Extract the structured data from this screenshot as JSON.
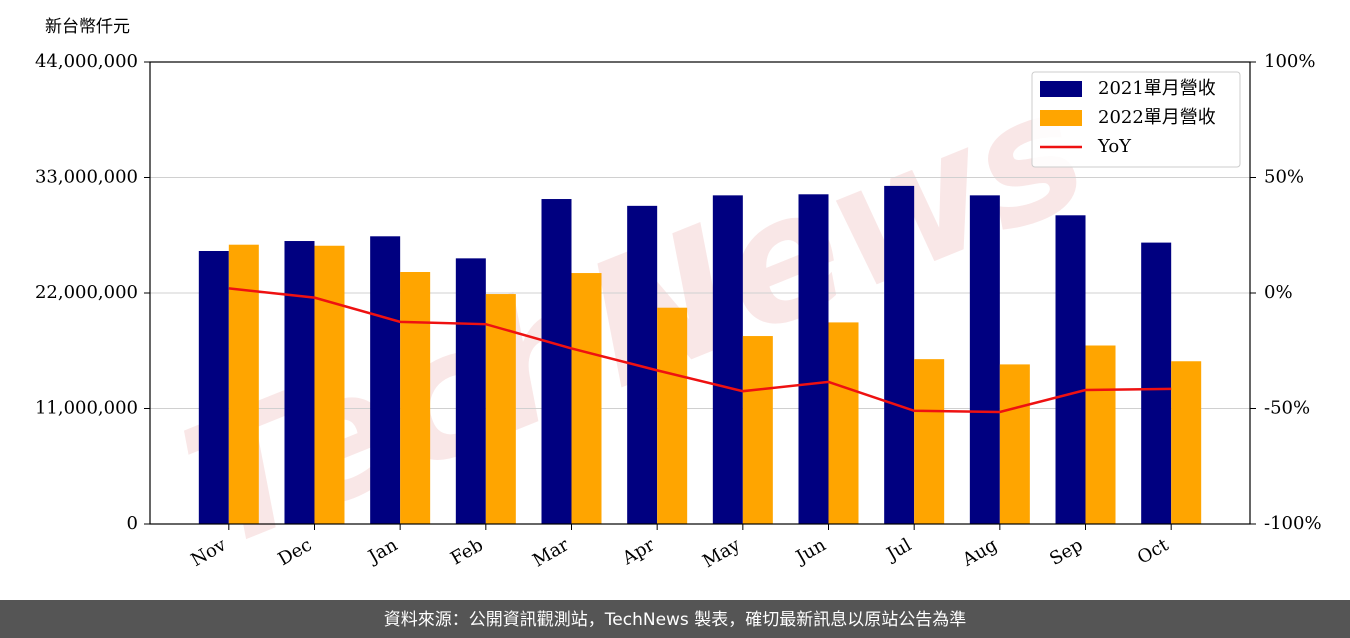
{
  "chart_data": {
    "type": "bar",
    "y_label": "新台幣仟元",
    "watermark": "TechNews",
    "footer": "資料來源：公開資訊觀測站，TechNews 製表，確切最新訊息以原站公告為準",
    "categories": [
      "Nov",
      "Dec",
      "Jan",
      "Feb",
      "Mar",
      "Apr",
      "May",
      "Jun",
      "Jul",
      "Aug",
      "Sep",
      "Oct"
    ],
    "series": [
      {
        "name": "2021單月營收",
        "color": "#000080",
        "values": [
          26000000,
          26950000,
          27400000,
          25300000,
          30950000,
          30300000,
          31300000,
          31400000,
          32200000,
          31300000,
          29400000,
          26800000
        ]
      },
      {
        "name": "2022單月營收",
        "color": "#ffa500",
        "values": [
          26600000,
          26500000,
          24000000,
          21900000,
          23900000,
          20600000,
          17900000,
          19200000,
          15700000,
          15200000,
          17000000,
          15500000
        ]
      },
      {
        "name": "YoY",
        "color": "#ee1111",
        "type": "line",
        "axis": "y2",
        "values": [
          2,
          -2,
          -12.5,
          -13.5,
          -24,
          -33.5,
          -42.5,
          -38.5,
          -51,
          -51.5,
          -42,
          -41.5
        ]
      }
    ],
    "ylim": [
      0,
      44000000
    ],
    "yticks": [
      0,
      {
        "value": 11000000,
        "label": "11,000,000"
      },
      {
        "value": 22000000,
        "label": "22,000,000"
      },
      {
        "value": 33000000,
        "label": "33,000,000"
      },
      {
        "value": 44000000,
        "label": "44,000,000"
      }
    ],
    "y2lim": [
      -100,
      100
    ],
    "y2ticks": [
      {
        "value": -100,
        "label": "-100%"
      },
      {
        "value": -50,
        "label": "-50%"
      },
      {
        "value": 0,
        "label": "0%"
      },
      {
        "value": 50,
        "label": "50%"
      },
      {
        "value": 100,
        "label": "100%"
      }
    ],
    "grid": true,
    "legend": "upper right"
  }
}
